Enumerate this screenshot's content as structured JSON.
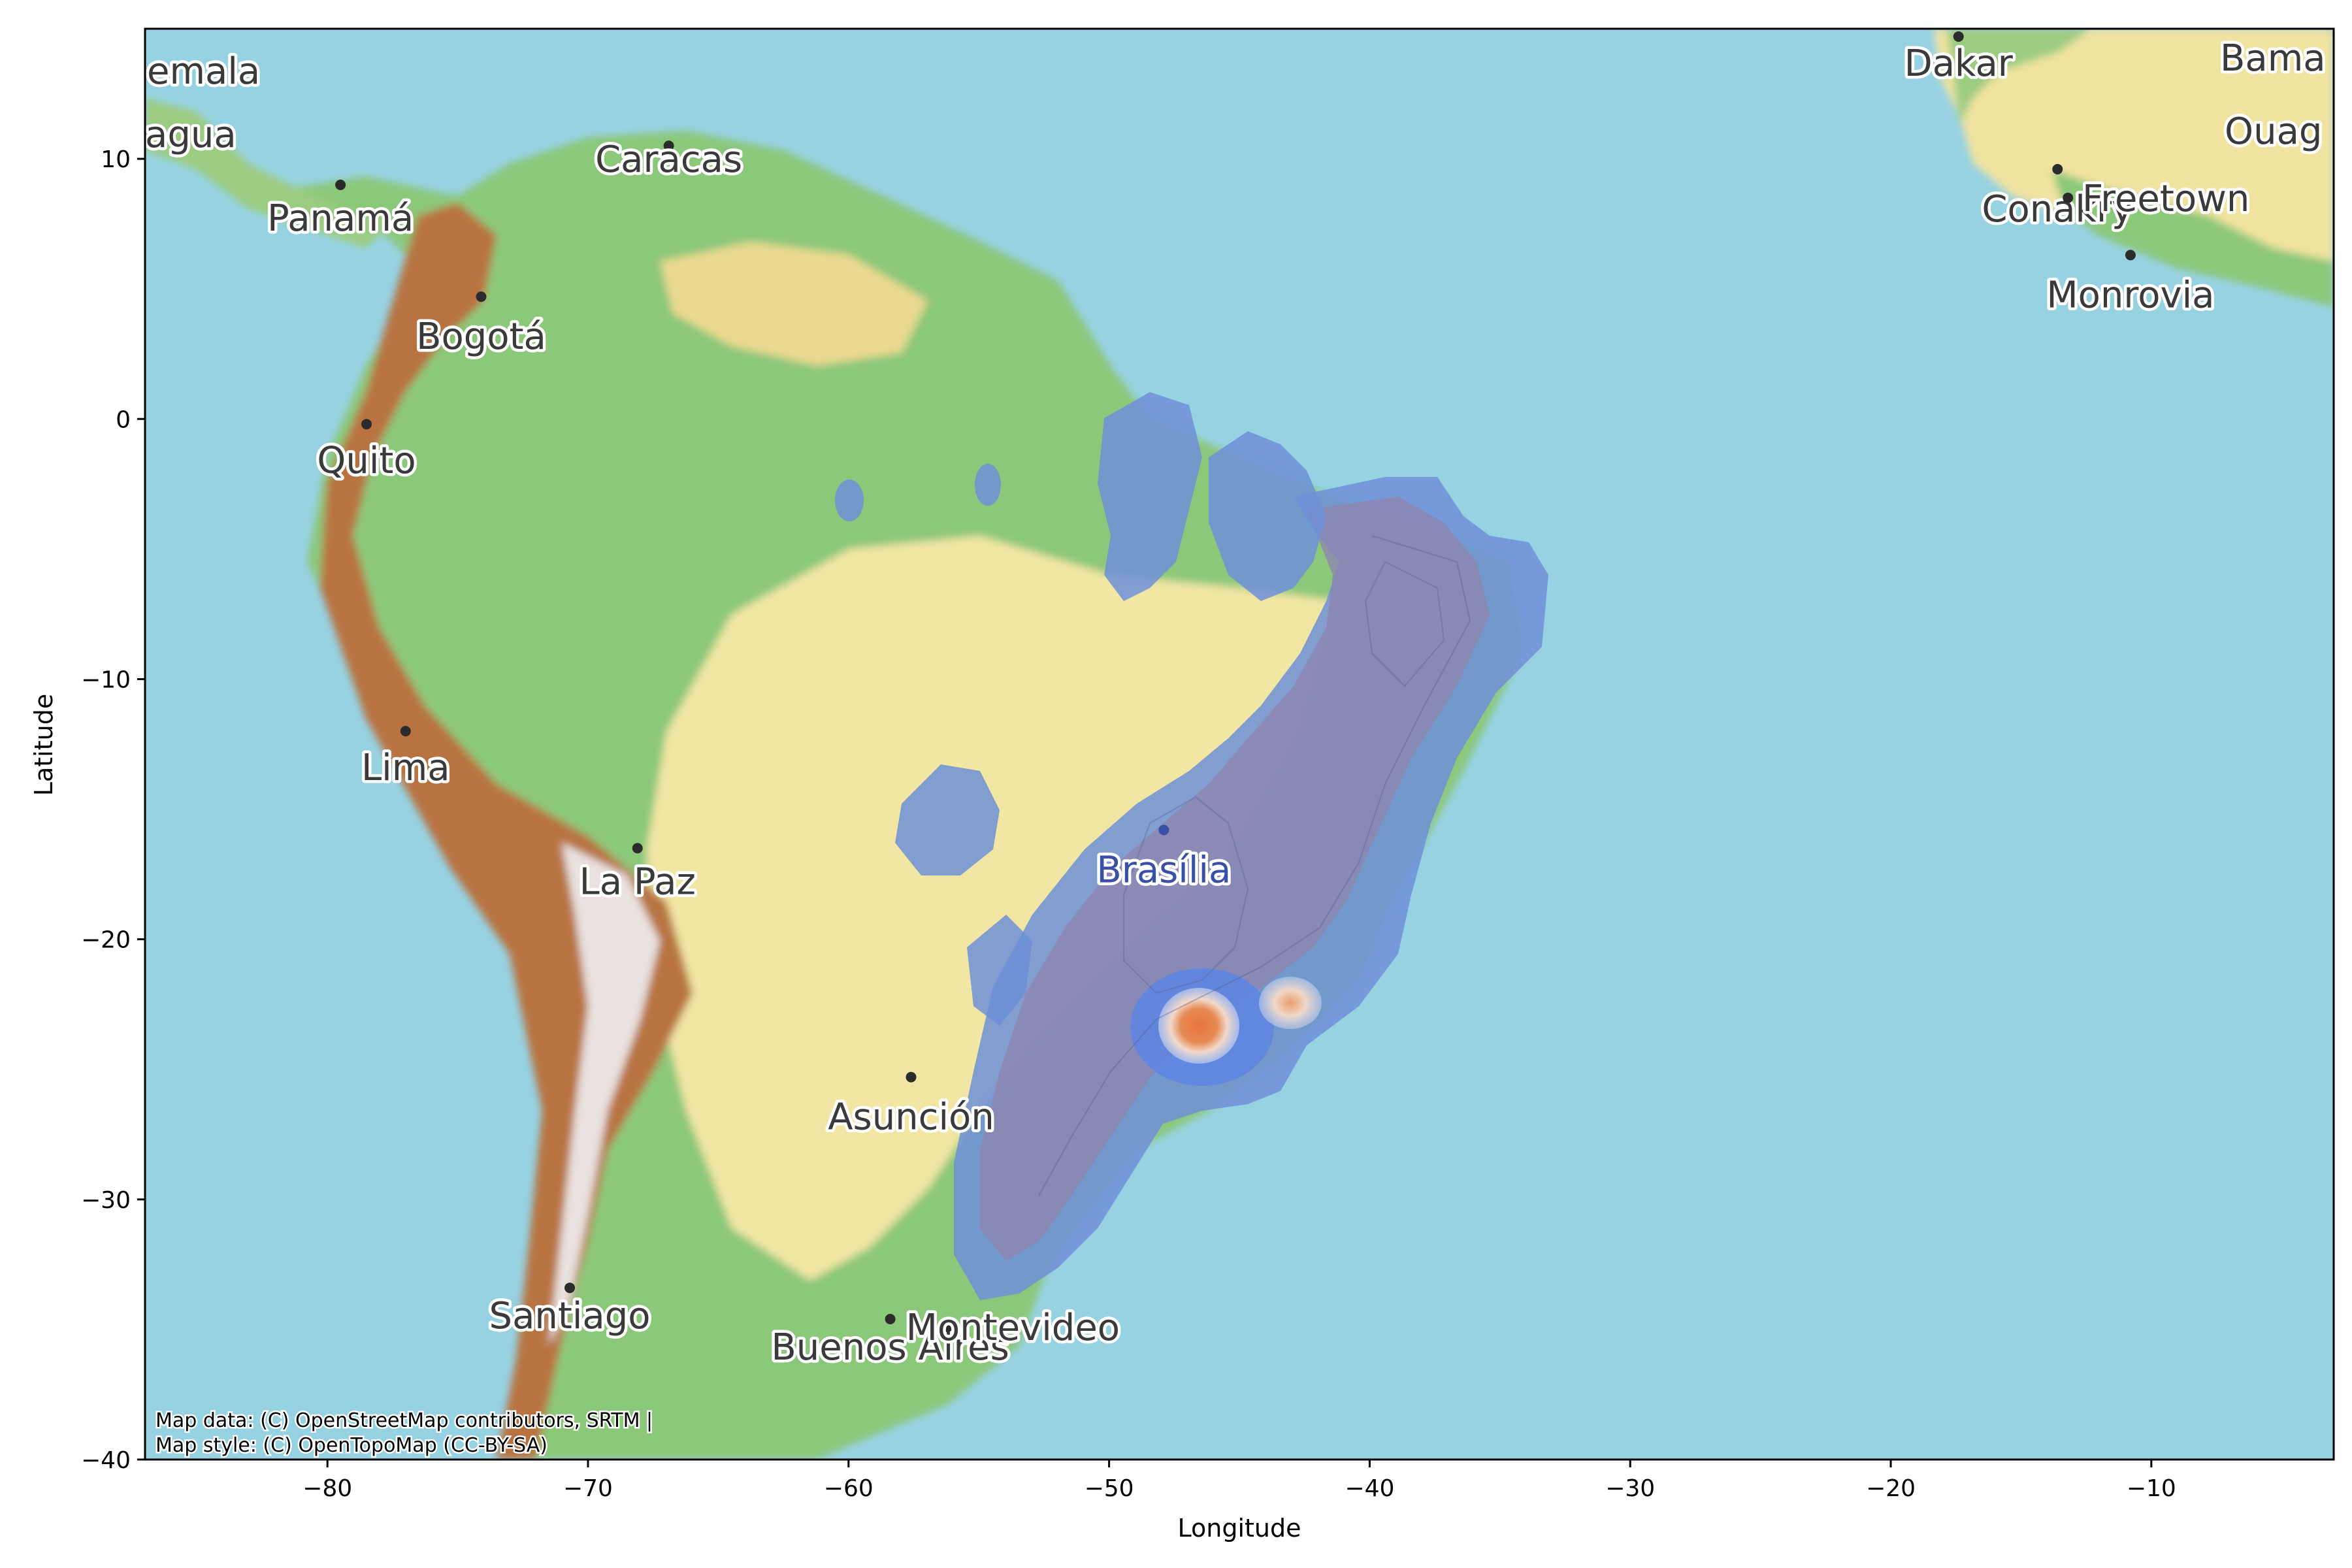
{
  "chart_data": {
    "type": "map",
    "xlabel": "Longitude",
    "ylabel": "Latitude",
    "xlim": [
      -87,
      -3
    ],
    "ylim": [
      -40,
      15
    ],
    "xticks": [
      -80,
      -70,
      -60,
      -50,
      -40,
      -30,
      -20,
      -10
    ],
    "yticks": [
      10,
      0,
      -10,
      -20,
      -30,
      -40
    ],
    "xtick_labels": [
      "−80",
      "−70",
      "−60",
      "−50",
      "−40",
      "−30",
      "−20",
      "−10"
    ],
    "ytick_labels": [
      "10",
      "0",
      "−10",
      "−20",
      "−30",
      "−40"
    ],
    "basemap": "OpenTopoMap shaded relief",
    "overlay": "kernel density heatmap (blue low → orange high)",
    "density_peaks": [
      {
        "lon": -46.6,
        "lat": -23.5,
        "level": "highest"
      },
      {
        "lon": -43.2,
        "lat": -22.7,
        "level": "high"
      }
    ],
    "cities": [
      {
        "name": "Caracas",
        "lon": -66.9,
        "lat": 10.5
      },
      {
        "name": "Panamá",
        "lon": -79.5,
        "lat": 9.0
      },
      {
        "name": "Bogotá",
        "lon": -74.1,
        "lat": 4.7
      },
      {
        "name": "Quito",
        "lon": -78.5,
        "lat": -0.2
      },
      {
        "name": "Lima",
        "lon": -77.0,
        "lat": -12.0
      },
      {
        "name": "La Paz",
        "lon": -68.1,
        "lat": -16.5
      },
      {
        "name": "Brasília",
        "lon": -47.9,
        "lat": -15.8
      },
      {
        "name": "Asunción",
        "lon": -57.6,
        "lat": -25.3
      },
      {
        "name": "Santiago",
        "lon": -70.7,
        "lat": -33.4
      },
      {
        "name": "Buenos Aires",
        "lon": -58.4,
        "lat": -34.6
      },
      {
        "name": "Montevideo",
        "lon": -56.2,
        "lat": -34.9
      },
      {
        "name": "Dakar",
        "lon": -17.4,
        "lat": 14.7
      },
      {
        "name": "Conakry",
        "lon": -13.6,
        "lat": 9.6
      },
      {
        "name": "Freetown",
        "lon": -13.2,
        "lat": 8.5
      },
      {
        "name": "Monrovia",
        "lon": -10.8,
        "lat": 6.3
      }
    ],
    "partial_labels": [
      "emala",
      "agua",
      "Bama",
      "Ouag"
    ],
    "attribution": [
      "Map data: (C) OpenStreetMap contributors, SRTM |",
      "Map style: (C) OpenTopoMap (CC-BY-SA)"
    ]
  },
  "colors": {
    "ocean": "#97d2e3",
    "density_low": "#6f8fd8",
    "density_mid": "#8f86b0",
    "density_high": "#e8743a"
  }
}
